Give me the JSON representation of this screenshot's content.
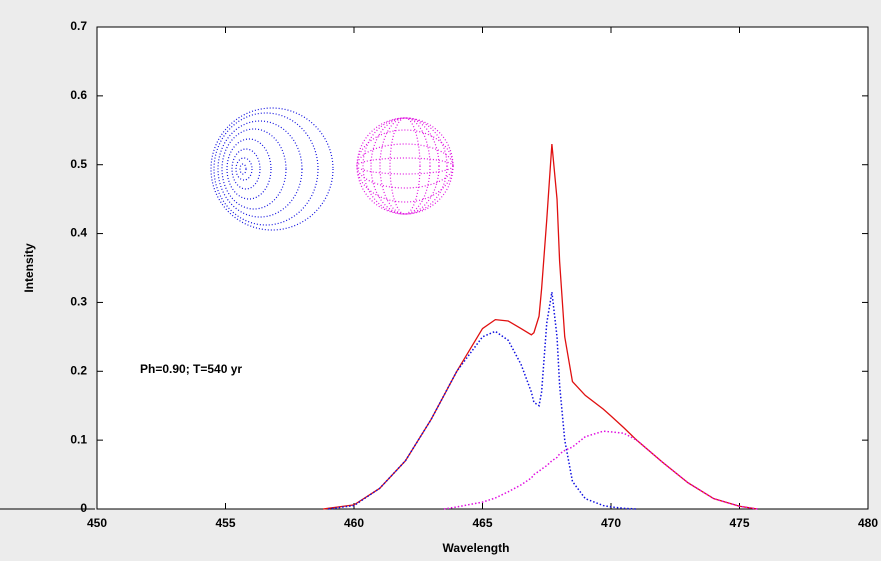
{
  "chart_data": {
    "type": "line",
    "x_label": "Wavelength",
    "y_label": "Intensity",
    "annotation": "Ph=0.90; T=540 yr",
    "x": [
      458.8,
      459,
      460,
      461,
      462,
      463,
      463.5,
      464,
      465,
      465.5,
      466,
      466.5,
      466.9,
      467,
      467.2,
      467.3,
      467.5,
      467.7,
      467.9,
      468,
      468.2,
      468.5,
      469,
      469.7,
      470,
      470.5,
      471,
      472,
      473,
      474,
      475,
      475.7
    ],
    "series": [
      {
        "color": "#e01010",
        "style": "solid",
        "values": [
          0,
          0.001,
          0.006,
          0.03,
          0.07,
          0.13,
          0.165,
          0.2,
          0.262,
          0.275,
          0.273,
          0.262,
          0.253,
          0.256,
          0.28,
          0.32,
          0.42,
          0.53,
          0.45,
          0.36,
          0.25,
          0.185,
          0.165,
          0.145,
          0.135,
          0.118,
          0.1,
          0.068,
          0.038,
          0.015,
          0.004,
          0
        ]
      },
      {
        "color": "#1010e0",
        "style": "dotted",
        "values": [
          null,
          0,
          0.005,
          0.03,
          0.07,
          0.13,
          0.165,
          0.2,
          0.25,
          0.258,
          0.245,
          0.21,
          0.17,
          0.155,
          0.15,
          0.17,
          0.27,
          0.315,
          0.25,
          0.18,
          0.1,
          0.04,
          0.015,
          0.005,
          0.003,
          0.001,
          0,
          null,
          null,
          null,
          null,
          null
        ]
      },
      {
        "color": "#e010e0",
        "style": "dotted",
        "values": [
          null,
          null,
          null,
          null,
          null,
          null,
          0,
          0.003,
          0.01,
          0.016,
          0.025,
          0.035,
          0.045,
          0.05,
          0.055,
          0.058,
          0.063,
          0.07,
          0.075,
          0.08,
          0.085,
          0.09,
          0.105,
          0.113,
          0.112,
          0.11,
          0.1,
          0.068,
          0.038,
          0.015,
          0.004,
          0
        ]
      }
    ],
    "xlim": [
      450,
      480
    ],
    "xticks": [
      450,
      455,
      460,
      465,
      470,
      475,
      480
    ],
    "ylim": [
      0,
      0.7
    ],
    "yticks": [
      0,
      0.1,
      0.2,
      0.3,
      0.4,
      0.5,
      0.6,
      0.7
    ]
  }
}
